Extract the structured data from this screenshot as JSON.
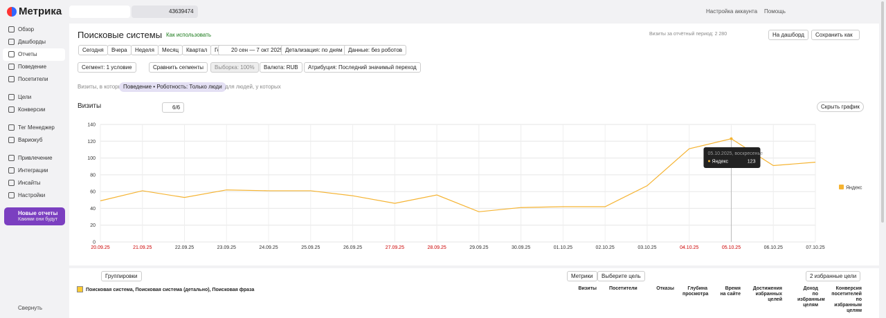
{
  "header": {
    "logo": "Метрика",
    "counter": "43639474",
    "links": [
      "Настройка аккаунта",
      "Помощь"
    ]
  },
  "sidebar": {
    "items": [
      "Обзор",
      "Дашборды",
      "Отчеты",
      "Поведение",
      "Посетители",
      "Цели",
      "Конверсии",
      "Тег Менеджер",
      "Вариокуб",
      "Привлечение",
      "Интеграции",
      "Инсайты",
      "Настройки"
    ],
    "promo": {
      "title": "Новые отчеты",
      "subtitle": "Какими они будут"
    },
    "collapse": "Свернуть"
  },
  "report": {
    "title": "Поисковые системы",
    "help": "Как использовать",
    "visits_period": "Визиты за отчётный период: 2 280",
    "buttons": [
      "На дашборд",
      "Сохранить как"
    ],
    "periods": [
      "Сегодня",
      "Вчера",
      "Неделя",
      "Месяц",
      "Квартал",
      "Год"
    ],
    "date_range": "20 сен — 7 окт 2025",
    "detail": "Детализация: по дням",
    "data": "Данные: без роботов",
    "segment": "Сегмент: 1 условие",
    "compare": "Сравнить сегменты",
    "sample": "Выборка: 100%",
    "currency": "Валюта: RUB",
    "attribution": "Атрибуция: Последний значимый переход",
    "filter_prefix": "Визиты, в которых",
    "filter": "Поведение • Роботность: Только люди",
    "filter_people": "для людей, у которых",
    "chart_label": "Визиты",
    "series_count": "6/6",
    "hide_chart": "Скрыть график"
  },
  "chart_data": {
    "type": "line",
    "x": [
      "20.09.25",
      "21.09.25",
      "22.09.25",
      "23.09.25",
      "24.09.25",
      "25.09.25",
      "26.09.25",
      "27.09.25",
      "28.09.25",
      "29.09.25",
      "30.09.25",
      "01.10.25",
      "02.10.25",
      "03.10.25",
      "04.10.25",
      "05.10.25",
      "06.10.25",
      "07.10.25"
    ],
    "xtick_colors": [
      "#cc0000",
      "#cc0000",
      "#333333",
      "#333333",
      "#333333",
      "#333333",
      "#333333",
      "#cc0000",
      "#cc0000",
      "#333333",
      "#333333",
      "#333333",
      "#333333",
      "#333333",
      "#cc0000",
      "#cc0000",
      "#333333",
      "#333333"
    ],
    "series": [
      {
        "name": "Яндекс",
        "color": "#f5b331",
        "values": [
          49,
          61,
          53,
          62,
          61,
          61,
          55,
          46,
          56,
          36,
          41,
          42,
          42,
          67,
          111,
          123,
          91,
          95
        ]
      }
    ],
    "ylim": [
      0,
      140
    ],
    "yticks": [
      0,
      20,
      40,
      60,
      80,
      100,
      120,
      140
    ],
    "grid": true,
    "tooltip": {
      "title": "05.10.2025, воскресенье"
    }
  },
  "table": {
    "groupings": "Группировки",
    "metrics": "Метрики",
    "goal": "Выберите цель",
    "fav_goals": "2 избранные цели",
    "dimension": "Поисковая система, Поисковая система (детально), Поисковая фраза",
    "columns": [
      "Визиты",
      "Посетители",
      "Отказы",
      "Глубина просмотра",
      "Время на сайте",
      "Достижения избранных целей",
      "Доход по избранным целям",
      "Конверсия посетителей по избранным целям"
    ]
  }
}
